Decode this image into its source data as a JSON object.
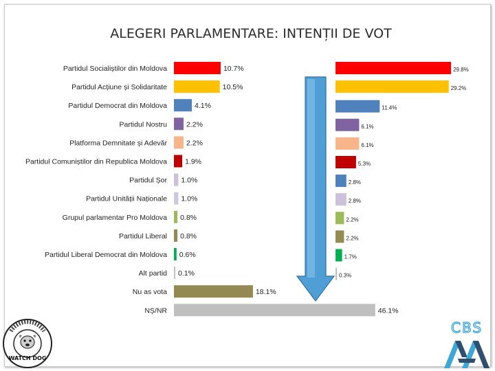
{
  "title": "ALEGERI PARLAMENTARE: INTENȚII DE VOT",
  "colors": {
    "arrow_fill": "#4f9fd6",
    "arrow_stroke": "#2e6fa3",
    "cbs_blue": "#3da8d8",
    "cbs_dark": "#2f4f6f"
  },
  "logos": {
    "left": {
      "name": "Watch Dog",
      "lettering": "WATCH DOG"
    },
    "right": {
      "name": "CBS AXA",
      "lettering": "CBS"
    }
  },
  "chart_data": [
    {
      "type": "bar",
      "orientation": "horizontal",
      "categories": [
        "Partidul Socialiștilor din Moldova",
        "Partidul Acțiune și Solidaritate",
        "Partidul Democrat din Moldova",
        "Partidul Nostru",
        "Platforma Demnitate și Adevăr",
        "Partidul Comuniștilor din Republica Moldova",
        "Partidul Șor",
        "Partidul Unității Naționale",
        "Grupul parlamentar Pro Moldova",
        "Partidul Liberal",
        "Partidul Liberal Democrat din Moldova",
        "Alt partid",
        "Nu as vota",
        "NȘ/NR"
      ],
      "values": [
        10.7,
        10.5,
        4.1,
        2.2,
        2.2,
        1.9,
        1.0,
        1.0,
        0.8,
        0.8,
        0.6,
        0.1,
        18.1,
        46.1
      ],
      "labels": [
        "10.7%",
        "10.5%",
        "4.1%",
        "2.2%",
        "2.2%",
        "1.9%",
        "1.0%",
        "1.0%",
        "0.8%",
        "0.8%",
        "0.6%",
        "0.1%",
        "18.1%",
        "46.1%"
      ],
      "colors": [
        "#ff0000",
        "#ffc000",
        "#4f81bd",
        "#8064a2",
        "#f9b58a",
        "#c00000",
        "#ccc0da",
        "#c9c9e0",
        "#9bbb59",
        "#948a54",
        "#00b050",
        "#bfbfbf",
        "#938953",
        "#bfbfbf"
      ]
    },
    {
      "type": "bar",
      "orientation": "horizontal",
      "categories": [
        "Partidul Socialiștilor din Moldova",
        "Partidul Acțiune și Solidaritate",
        "Partidul Democrat din Moldova",
        "Partidul Nostru",
        "Platforma Demnitate și Adevăr",
        "Partidul Comuniștilor din Republica Moldova",
        "Partidul Șor",
        "Partidul Unității Naționale",
        "Grupul parlamentar Pro Moldova",
        "Partidul Liberal",
        "Partidul Liberal Democrat din Moldova",
        "Alt partid"
      ],
      "values": [
        29.8,
        29.2,
        11.4,
        6.1,
        6.1,
        5.3,
        2.8,
        2.8,
        2.2,
        2.2,
        1.7,
        0.3
      ],
      "labels": [
        "29.8%",
        "29.2%",
        "11.4%",
        "6.1%",
        "6.1%",
        "5.3%",
        "2.8%",
        "2.8%",
        "2.2%",
        "2.2%",
        "1.7%",
        "0.3%"
      ],
      "colors": [
        "#ff0000",
        "#ffc000",
        "#4f81bd",
        "#8064a2",
        "#f9b58a",
        "#c00000",
        "#4f81bd",
        "#ccc0da",
        "#9bbb59",
        "#948a54",
        "#00b050",
        "#bfbfbf"
      ]
    }
  ]
}
